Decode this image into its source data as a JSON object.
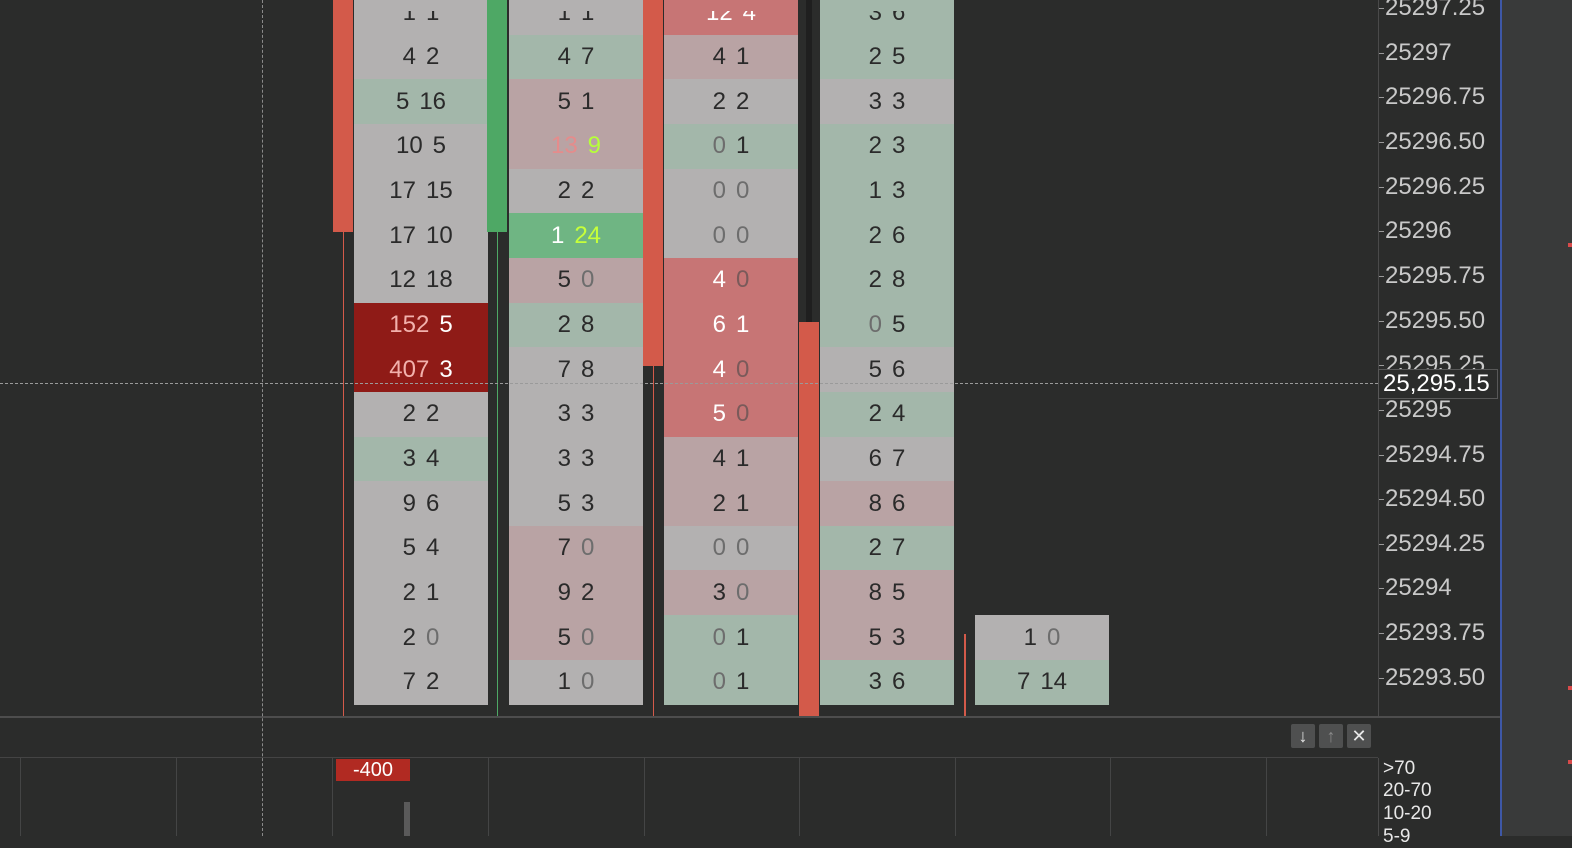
{
  "colors": {
    "background": "#2b2c2b",
    "bull_candle": "#4ea865",
    "bear_candle": "#d35a4a",
    "neutral_cell": "#b3b1b1",
    "green_cell": "#a3b7aa",
    "pink_cell": "#b9a3a4",
    "strong_green_cell": "#6fb583",
    "strong_red_cell": "#8f1b17",
    "bear_highlight_cell": "#c77575",
    "axis_accent": "#3e57a6"
  },
  "price_axis": {
    "labels": [
      "25297.25",
      "25297",
      "25296.75",
      "25296.50",
      "25296.25",
      "25296",
      "25295.75",
      "25295.50",
      "25295.25",
      "25295",
      "25294.75",
      "25294.50",
      "25294.25",
      "25294",
      "25293.75",
      "25293.50"
    ],
    "cursor_price": "25,295.15"
  },
  "footprint": {
    "columns": [
      {
        "name": "bar-1",
        "rows": [
          {
            "bid": "1",
            "ask": "1",
            "bg": "neutral"
          },
          {
            "bid": "4",
            "ask": "2",
            "bg": "neutral"
          },
          {
            "bid": "5",
            "ask": "16",
            "bg": "green"
          },
          {
            "bid": "10",
            "ask": "5",
            "bg": "neutral"
          },
          {
            "bid": "17",
            "ask": "15",
            "bg": "neutral"
          },
          {
            "bid": "17",
            "ask": "10",
            "bg": "neutral"
          },
          {
            "bid": "12",
            "ask": "18",
            "bg": "neutral"
          },
          {
            "bid": "152",
            "ask": "5",
            "bg": "strong_red",
            "bid_color": "#f2b1ac",
            "ask_color": "#ffffff"
          },
          {
            "bid": "407",
            "ask": "3",
            "bg": "strong_red",
            "bid_color": "#f2b1ac",
            "ask_color": "#ffffff"
          },
          {
            "bid": "2",
            "ask": "2",
            "bg": "neutral"
          },
          {
            "bid": "3",
            "ask": "4",
            "bg": "green"
          },
          {
            "bid": "9",
            "ask": "6",
            "bg": "neutral"
          },
          {
            "bid": "5",
            "ask": "4",
            "bg": "neutral"
          },
          {
            "bid": "2",
            "ask": "1",
            "bg": "neutral"
          },
          {
            "bid": "2",
            "ask": "0",
            "bg": "neutral",
            "ask_color": "#6d6d6d"
          },
          {
            "bid": "7",
            "ask": "2",
            "bg": "neutral"
          }
        ]
      },
      {
        "name": "bar-2",
        "rows": [
          {
            "bid": "1",
            "ask": "1",
            "bg": "neutral"
          },
          {
            "bid": "4",
            "ask": "7",
            "bg": "green"
          },
          {
            "bid": "5",
            "ask": "1",
            "bg": "pink"
          },
          {
            "bid": "13",
            "ask": "9",
            "bg": "pink",
            "bid_color": "#e58c8c",
            "ask_color": "#b6ff3a"
          },
          {
            "bid": "2",
            "ask": "2",
            "bg": "neutral"
          },
          {
            "bid": "1",
            "ask": "24",
            "bg": "strong_green",
            "bid_color": "#ffffff",
            "ask_color": "#c6ff3a"
          },
          {
            "bid": "5",
            "ask": "0",
            "bg": "pink",
            "ask_color": "#6d6d6d"
          },
          {
            "bid": "2",
            "ask": "8",
            "bg": "green"
          },
          {
            "bid": "7",
            "ask": "8",
            "bg": "neutral"
          },
          {
            "bid": "3",
            "ask": "3",
            "bg": "neutral"
          },
          {
            "bid": "3",
            "ask": "3",
            "bg": "neutral"
          },
          {
            "bid": "5",
            "ask": "3",
            "bg": "neutral"
          },
          {
            "bid": "7",
            "ask": "0",
            "bg": "pink",
            "ask_color": "#6d6d6d"
          },
          {
            "bid": "9",
            "ask": "2",
            "bg": "pink"
          },
          {
            "bid": "5",
            "ask": "0",
            "bg": "pink",
            "ask_color": "#6d6d6d"
          },
          {
            "bid": "1",
            "ask": "0",
            "bg": "neutral",
            "ask_color": "#6d6d6d"
          }
        ]
      },
      {
        "name": "bar-3",
        "rows": [
          {
            "bid": "12",
            "ask": "4",
            "bg": "bear_highlight",
            "bid_color": "#ffffff",
            "ask_color": "#ffffff"
          },
          {
            "bid": "4",
            "ask": "1",
            "bg": "pink"
          },
          {
            "bid": "2",
            "ask": "2",
            "bg": "neutral"
          },
          {
            "bid": "0",
            "ask": "1",
            "bg": "green",
            "bid_color": "#6d6d6d"
          },
          {
            "bid": "0",
            "ask": "0",
            "bg": "neutral",
            "bid_color": "#6d6d6d",
            "ask_color": "#6d6d6d"
          },
          {
            "bid": "0",
            "ask": "0",
            "bg": "neutral",
            "bid_color": "#6d6d6d",
            "ask_color": "#6d6d6d"
          },
          {
            "bid": "4",
            "ask": "0",
            "bg": "bear_highlight",
            "bid_color": "#ffffff",
            "ask_color": "#7a5a5a"
          },
          {
            "bid": "6",
            "ask": "1",
            "bg": "bear_highlight",
            "bid_color": "#ffffff",
            "ask_color": "#ffffff"
          },
          {
            "bid": "4",
            "ask": "0",
            "bg": "bear_highlight",
            "bid_color": "#ffffff",
            "ask_color": "#7a5a5a"
          },
          {
            "bid": "5",
            "ask": "0",
            "bg": "bear_highlight",
            "bid_color": "#ffffff",
            "ask_color": "#7a5a5a"
          },
          {
            "bid": "4",
            "ask": "1",
            "bg": "pink"
          },
          {
            "bid": "2",
            "ask": "1",
            "bg": "pink"
          },
          {
            "bid": "0",
            "ask": "0",
            "bg": "neutral",
            "bid_color": "#6d6d6d",
            "ask_color": "#6d6d6d"
          },
          {
            "bid": "3",
            "ask": "0",
            "bg": "pink",
            "ask_color": "#6d6d6d"
          },
          {
            "bid": "0",
            "ask": "1",
            "bg": "green",
            "bid_color": "#6d6d6d"
          },
          {
            "bid": "0",
            "ask": "1",
            "bg": "green",
            "bid_color": "#6d6d6d"
          }
        ]
      },
      {
        "name": "bar-4",
        "rows": [
          {
            "bid": "3",
            "ask": "6",
            "bg": "green"
          },
          {
            "bid": "2",
            "ask": "5",
            "bg": "green"
          },
          {
            "bid": "3",
            "ask": "3",
            "bg": "neutral"
          },
          {
            "bid": "2",
            "ask": "3",
            "bg": "green"
          },
          {
            "bid": "1",
            "ask": "3",
            "bg": "green"
          },
          {
            "bid": "2",
            "ask": "6",
            "bg": "green"
          },
          {
            "bid": "2",
            "ask": "8",
            "bg": "green"
          },
          {
            "bid": "0",
            "ask": "5",
            "bg": "green",
            "bid_color": "#6d6d6d"
          },
          {
            "bid": "5",
            "ask": "6",
            "bg": "neutral"
          },
          {
            "bid": "2",
            "ask": "4",
            "bg": "green"
          },
          {
            "bid": "6",
            "ask": "7",
            "bg": "neutral"
          },
          {
            "bid": "8",
            "ask": "6",
            "bg": "pink"
          },
          {
            "bid": "2",
            "ask": "7",
            "bg": "green"
          },
          {
            "bid": "8",
            "ask": "5",
            "bg": "pink"
          },
          {
            "bid": "5",
            "ask": "3",
            "bg": "pink"
          },
          {
            "bid": "3",
            "ask": "6",
            "bg": "green"
          }
        ]
      },
      {
        "name": "bar-5",
        "rows": [
          {
            "bid": "1",
            "ask": "0",
            "bg": "neutral",
            "ask_color": "#6d6d6d"
          },
          {
            "bid": "7",
            "ask": "14",
            "bg": "green"
          }
        ]
      }
    ]
  },
  "toolbar": {
    "move_down_icon": "arrow-down-icon",
    "move_up_icon": "arrow-up-icon",
    "close_icon": "close-icon"
  },
  "subpane": {
    "delta_value": "-400",
    "legend": [
      ">70",
      "20-70",
      "10-20",
      "5-9"
    ]
  }
}
